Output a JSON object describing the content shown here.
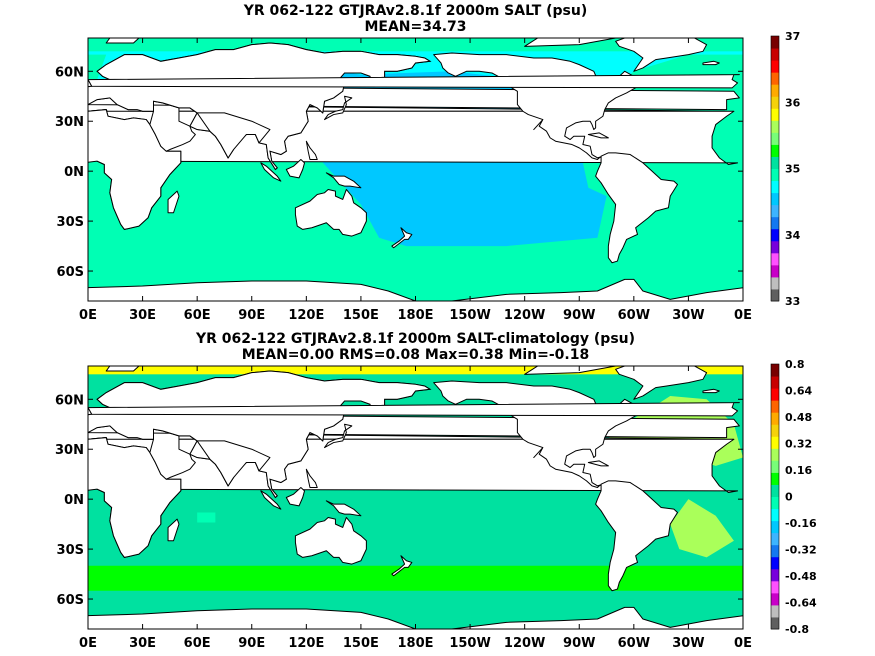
{
  "chart_data": [
    {
      "type": "heatmap",
      "title": "YR 062-122 GTJRAv2.8.1f 2000m SALT (psu)",
      "subtitle": "MEAN=34.73",
      "x_ticks": [
        "0E",
        "30E",
        "60E",
        "90E",
        "120E",
        "150E",
        "180E",
        "150W",
        "120W",
        "90W",
        "60W",
        "30W",
        "0E"
      ],
      "y_ticks": [
        "60N",
        "30N",
        "0N",
        "30S",
        "60S"
      ],
      "y_tick_values": [
        60,
        30,
        0,
        -30,
        -60
      ],
      "lat_range": [
        -78,
        80
      ],
      "lon_range": [
        0,
        360
      ],
      "colorbar": {
        "tick_labels": [
          "37",
          "36",
          "35",
          "34",
          "33"
        ],
        "tick_values": [
          37,
          36,
          35,
          34,
          33
        ],
        "range": [
          33,
          37
        ],
        "colors": [
          "#5f5f5f",
          "#bebebe",
          "#c800c8",
          "#ff50ff",
          "#7800dc",
          "#0000ff",
          "#1478f0",
          "#3cb4ff",
          "#00c8ff",
          "#00ffff",
          "#00ffb4",
          "#00e1a0",
          "#00ff00",
          "#78ff78",
          "#aaff5a",
          "#ffff00",
          "#f5d20a",
          "#ffaa00",
          "#ff6400",
          "#ff0000",
          "#c80000",
          "#780000"
        ]
      },
      "regions": [
        {
          "name": "background",
          "value": 34.78
        },
        {
          "name": "north-pacific",
          "value": 34.62
        },
        {
          "name": "atlantic",
          "value": 34.95
        },
        {
          "name": "indian-south",
          "value": 34.9
        }
      ]
    },
    {
      "type": "heatmap",
      "title": "YR 062-122 GTJRAv2.8.1f 2000m SALT-climatology (psu)",
      "subtitle": "MEAN=0.00   RMS=0.08   Max=0.38   Min=-0.18",
      "x_ticks": [
        "0E",
        "30E",
        "60E",
        "90E",
        "120E",
        "150E",
        "180E",
        "150W",
        "120W",
        "90W",
        "60W",
        "30W",
        "0E"
      ],
      "y_ticks": [
        "60N",
        "30N",
        "0N",
        "30S",
        "60S"
      ],
      "y_tick_values": [
        60,
        30,
        0,
        -30,
        -60
      ],
      "lat_range": [
        -78,
        80
      ],
      "lon_range": [
        0,
        360
      ],
      "colorbar": {
        "tick_labels": [
          "0.8",
          "0.64",
          "0.48",
          "0.32",
          "0.16",
          "0",
          "-0.16",
          "-0.32",
          "-0.48",
          "-0.64",
          "-0.8"
        ],
        "tick_values": [
          0.8,
          0.64,
          0.48,
          0.32,
          0.16,
          0,
          -0.16,
          -0.32,
          -0.48,
          -0.64,
          -0.8
        ],
        "range": [
          -0.8,
          0.8
        ],
        "colors": [
          "#5f5f5f",
          "#bebebe",
          "#c800c8",
          "#ff50ff",
          "#7800dc",
          "#0000ff",
          "#1478f0",
          "#3cb4ff",
          "#00c8ff",
          "#00ffff",
          "#00ffb4",
          "#00e1a0",
          "#00ff00",
          "#78ff78",
          "#aaff5a",
          "#ffff00",
          "#f5d20a",
          "#ffaa00",
          "#ff6400",
          "#ff0000",
          "#c80000",
          "#780000"
        ]
      },
      "regions": [
        {
          "name": "background",
          "value": 0.05
        },
        {
          "name": "north-atlantic",
          "value": 0.26
        },
        {
          "name": "southern-band",
          "value": 0.1
        }
      ]
    }
  ]
}
